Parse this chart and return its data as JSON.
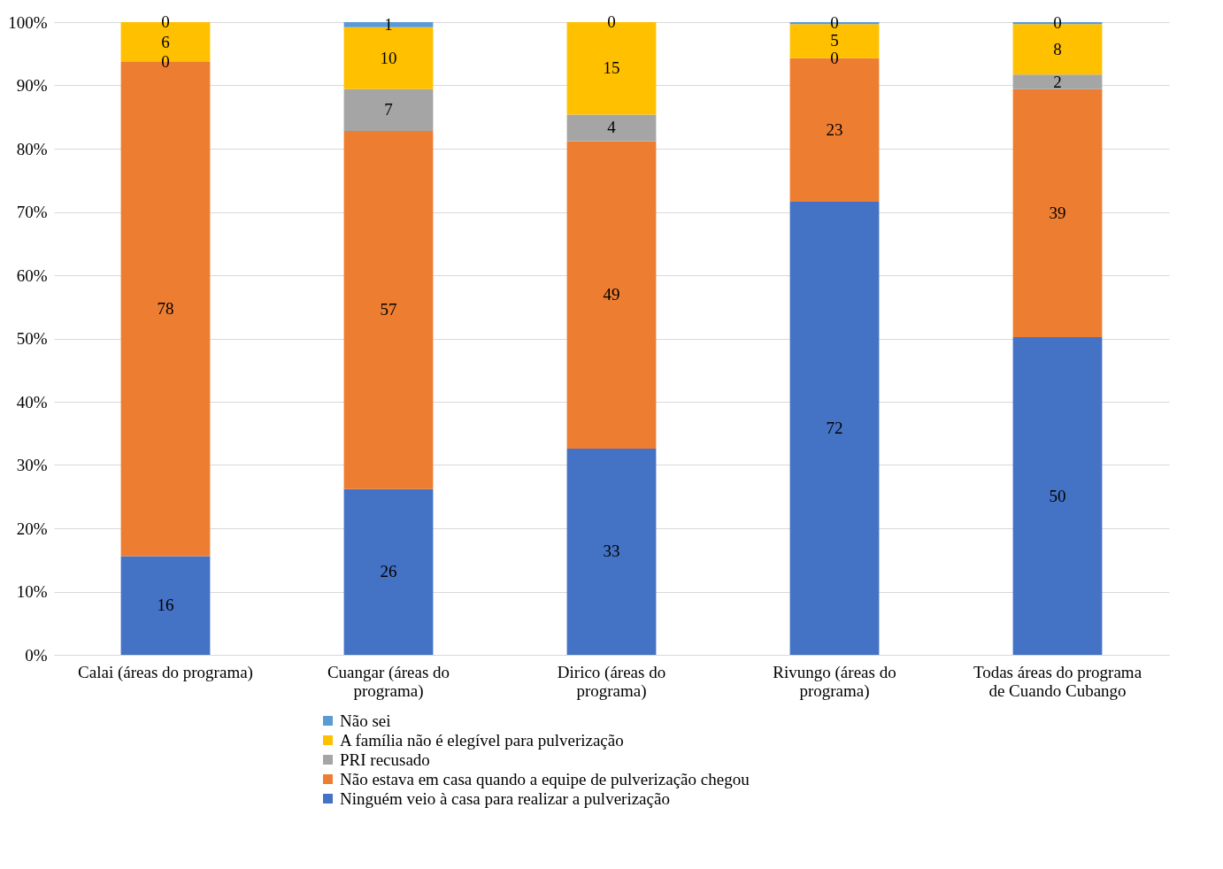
{
  "chart_data": {
    "type": "bar",
    "stacked": true,
    "categories": [
      "Calai (áreas do programa)",
      "Cuangar (áreas do programa)",
      "Dirico (áreas do programa)",
      "Rivungo (áreas do programa)",
      "Todas áreas do programa de Cuando Cubango"
    ],
    "series": [
      {
        "name": "Ninguém veio à casa para realizar a pulverização",
        "color": "#4472c4",
        "values": [
          15.6,
          26.2,
          32.6,
          71.6,
          50.2
        ],
        "value_labels": [
          "16",
          "26",
          "33",
          "72",
          "50"
        ]
      },
      {
        "name": "Não estava em casa quando a equipe de pulverização chegou",
        "color": "#ed7d31",
        "values": [
          78.1,
          56.6,
          48.6,
          22.7,
          39.2
        ],
        "value_labels": [
          "78",
          "57",
          "49",
          "23",
          "39"
        ]
      },
      {
        "name": "PRI recusado",
        "color": "#a5a5a5",
        "values": [
          0,
          6.6,
          4.2,
          0,
          2.3
        ],
        "value_labels": [
          "0",
          "7",
          "4",
          "0",
          "2"
        ]
      },
      {
        "name": "A família não é elegível para pulverização",
        "color": "#ffc000",
        "values": [
          6.3,
          9.8,
          14.6,
          5.4,
          8.0
        ],
        "value_labels": [
          "6",
          "10",
          "15",
          "5",
          "8"
        ]
      },
      {
        "name": "Não sei",
        "color": "#5b9bd5",
        "values": [
          0,
          0.8,
          0,
          0.3,
          0.3
        ],
        "value_labels": [
          "0",
          "1",
          "0",
          "0",
          "0"
        ]
      }
    ],
    "ylim": [
      0,
      100
    ],
    "yticks": [
      {
        "value": 0,
        "label": "0%"
      },
      {
        "value": 10,
        "label": "10%"
      },
      {
        "value": 20,
        "label": "20%"
      },
      {
        "value": 30,
        "label": "30%"
      },
      {
        "value": 40,
        "label": "40%"
      },
      {
        "value": 50,
        "label": "50%"
      },
      {
        "value": 60,
        "label": "60%"
      },
      {
        "value": 70,
        "label": "70%"
      },
      {
        "value": 80,
        "label": "80%"
      },
      {
        "value": 90,
        "label": "90%"
      },
      {
        "value": 100,
        "label": "100%"
      }
    ],
    "grid": "y",
    "legend": "bottom"
  }
}
